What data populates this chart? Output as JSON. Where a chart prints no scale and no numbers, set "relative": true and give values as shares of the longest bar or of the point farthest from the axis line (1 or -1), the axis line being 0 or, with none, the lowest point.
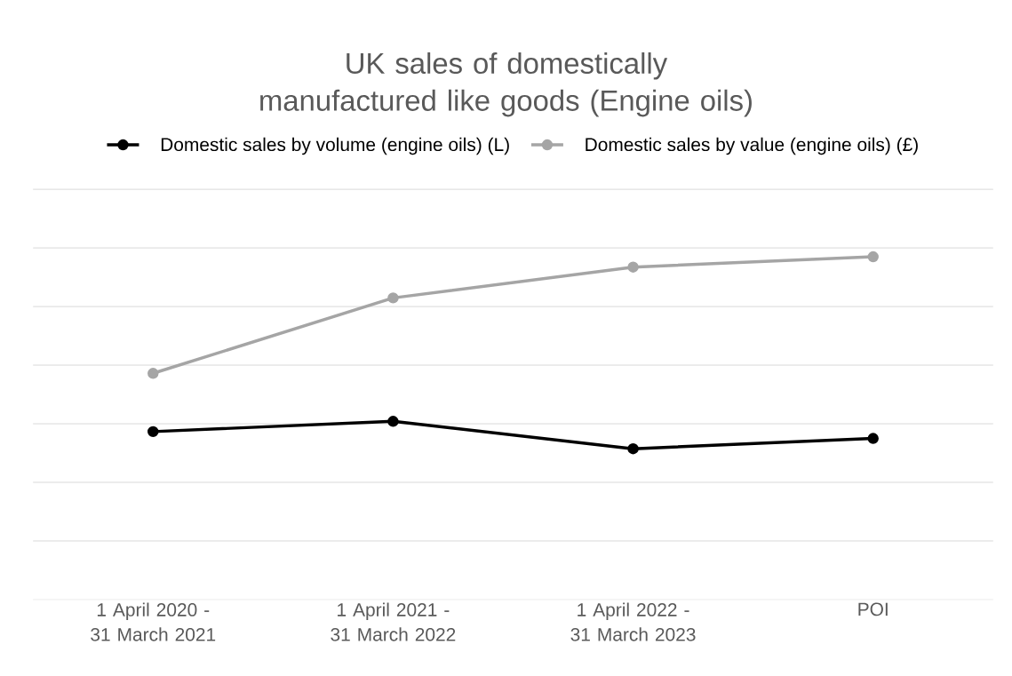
{
  "chart_data": {
    "type": "line",
    "title": "UK sales of domestically manufactured like goods (Engine oils)",
    "relative": true,
    "categories": [
      "1 April 2020 - 31 March 2021",
      "1 April 2021 - 31 March 2022",
      "1 April 2022 - 31 March 2023",
      "POI"
    ],
    "series": [
      {
        "name": "Domestic sales by volume (engine oils) (L)",
        "color": "#000000",
        "values": [
          0.49,
          0.52,
          0.44,
          0.47
        ]
      },
      {
        "name": "Domestic sales by value (engine oils) (£)",
        "color": "#a5a5a5",
        "values": [
          0.66,
          0.88,
          0.97,
          1
        ]
      }
    ],
    "grid": "y",
    "legend": "top",
    "marker": "circle",
    "line_style": "solid"
  }
}
